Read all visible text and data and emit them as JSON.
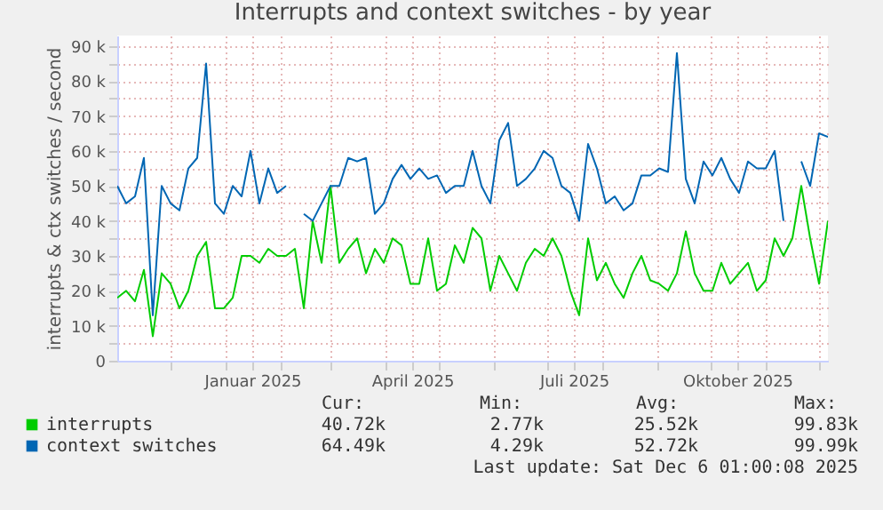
{
  "chart_data": {
    "type": "line",
    "title": "Interrupts and context switches - by year",
    "ylabel": "interrupts & ctx switches / second",
    "x": [
      "2024-11-01",
      "2024-11-06",
      "2024-11-11",
      "2024-11-16",
      "2024-11-21",
      "2024-11-26",
      "2024-12-01",
      "2024-12-06",
      "2024-12-11",
      "2024-12-16",
      "2024-12-21",
      "2024-12-26",
      "2024-12-31",
      "2025-01-05",
      "2025-01-10",
      "2025-01-15",
      "2025-01-20",
      "2025-01-25",
      "2025-01-30",
      "2025-02-04",
      "2025-02-09",
      "2025-02-14",
      "2025-02-19",
      "2025-02-24",
      "2025-03-01",
      "2025-03-06",
      "2025-03-11",
      "2025-03-16",
      "2025-03-21",
      "2025-03-26",
      "2025-03-31",
      "2025-04-05",
      "2025-04-10",
      "2025-04-15",
      "2025-04-20",
      "2025-04-25",
      "2025-04-30",
      "2025-05-05",
      "2025-05-10",
      "2025-05-15",
      "2025-05-20",
      "2025-05-25",
      "2025-05-30",
      "2025-06-04",
      "2025-06-09",
      "2025-06-14",
      "2025-06-19",
      "2025-06-24",
      "2025-06-29",
      "2025-07-04",
      "2025-07-09",
      "2025-07-14",
      "2025-07-19",
      "2025-07-24",
      "2025-07-29",
      "2025-08-03",
      "2025-08-08",
      "2025-08-13",
      "2025-08-18",
      "2025-08-23",
      "2025-08-28",
      "2025-09-02",
      "2025-09-07",
      "2025-09-12",
      "2025-09-17",
      "2025-09-22",
      "2025-09-27",
      "2025-10-02",
      "2025-10-07",
      "2025-10-12",
      "2025-10-17",
      "2025-10-22",
      "2025-10-27",
      "2025-11-01",
      "2025-11-06",
      "2025-11-11",
      "2025-11-16",
      "2025-11-21",
      "2025-11-26",
      "2025-12-01",
      "2025-12-06"
    ],
    "series": [
      {
        "name": "interrupts",
        "color": "#00cc00",
        "values": [
          18000,
          20000,
          17000,
          26000,
          7000,
          25000,
          22000,
          15000,
          20000,
          30000,
          34000,
          15000,
          15000,
          18000,
          30000,
          30000,
          28000,
          32000,
          30000,
          30000,
          32000,
          15000,
          40000,
          28000,
          50000,
          28000,
          32000,
          35000,
          25000,
          32000,
          28000,
          35000,
          33000,
          22000,
          22000,
          35000,
          20000,
          22000,
          33000,
          28000,
          38000,
          35000,
          20000,
          30000,
          25000,
          20000,
          28000,
          32000,
          30000,
          35000,
          30000,
          20000,
          13000,
          35000,
          23000,
          28000,
          22000,
          18000,
          25000,
          30000,
          23000,
          22000,
          20000,
          25000,
          37000,
          25000,
          20000,
          20000,
          28000,
          22000,
          25000,
          28000,
          20000,
          23000,
          35000,
          30000,
          35000,
          50000,
          35000,
          22000,
          40000
        ]
      },
      {
        "name": "context switches",
        "color": "#0066b3",
        "values": [
          50000,
          45000,
          47000,
          58000,
          13000,
          50000,
          45000,
          43000,
          55000,
          58000,
          85000,
          45000,
          42000,
          50000,
          47000,
          60000,
          45000,
          55000,
          48000,
          50000,
          null,
          42000,
          40000,
          45000,
          50000,
          50000,
          58000,
          57000,
          58000,
          42000,
          45000,
          52000,
          56000,
          52000,
          55000,
          52000,
          53000,
          48000,
          50000,
          50000,
          60000,
          50000,
          45000,
          63000,
          68000,
          50000,
          52000,
          55000,
          60000,
          58000,
          50000,
          48000,
          40000,
          62000,
          55000,
          45000,
          47000,
          43000,
          45000,
          53000,
          53000,
          55000,
          54000,
          88000,
          52000,
          45000,
          57000,
          53000,
          58000,
          52000,
          48000,
          57000,
          55000,
          55000,
          60000,
          40000,
          null,
          57000,
          50000,
          65000,
          64000
        ]
      }
    ],
    "xlim": [
      "2024-11-01",
      "2025-12-06"
    ],
    "xticks": [
      {
        "value": "2024-12-01",
        "label": null
      },
      {
        "value": "2025-01-01",
        "label": null
      },
      {
        "value": "2025-01-16",
        "label": "Januar 2025"
      },
      {
        "value": "2025-02-01",
        "label": null
      },
      {
        "value": "2025-03-01",
        "label": null
      },
      {
        "value": "2025-04-01",
        "label": null
      },
      {
        "value": "2025-04-16",
        "label": "April 2025"
      },
      {
        "value": "2025-05-01",
        "label": null
      },
      {
        "value": "2025-06-01",
        "label": null
      },
      {
        "value": "2025-07-01",
        "label": null
      },
      {
        "value": "2025-07-16",
        "label": "Juli 2025"
      },
      {
        "value": "2025-08-01",
        "label": null
      },
      {
        "value": "2025-09-01",
        "label": null
      },
      {
        "value": "2025-10-01",
        "label": null
      },
      {
        "value": "2025-10-16",
        "label": "Oktober 2025"
      },
      {
        "value": "2025-11-01",
        "label": null
      },
      {
        "value": "2025-12-01",
        "label": null
      }
    ],
    "ylim": [
      0,
      93000
    ],
    "yticks": [
      {
        "value": 0,
        "label": "0"
      },
      {
        "value": 5000,
        "label": null
      },
      {
        "value": 10000,
        "label": "10 k"
      },
      {
        "value": 15000,
        "label": null
      },
      {
        "value": 20000,
        "label": "20 k"
      },
      {
        "value": 25000,
        "label": null
      },
      {
        "value": 30000,
        "label": "30 k"
      },
      {
        "value": 35000,
        "label": null
      },
      {
        "value": 40000,
        "label": "40 k"
      },
      {
        "value": 45000,
        "label": null
      },
      {
        "value": 50000,
        "label": "50 k"
      },
      {
        "value": 55000,
        "label": null
      },
      {
        "value": 60000,
        "label": "60 k"
      },
      {
        "value": 65000,
        "label": null
      },
      {
        "value": 70000,
        "label": "70 k"
      },
      {
        "value": 75000,
        "label": null
      },
      {
        "value": 80000,
        "label": "80 k"
      },
      {
        "value": 85000,
        "label": null
      },
      {
        "value": 90000,
        "label": "90 k"
      }
    ],
    "grid": true,
    "legend": "bottom",
    "marker": "none",
    "line_style": "solid",
    "annotations": [
      "Cur:",
      "Min:",
      "Avg:",
      "Max:",
      "40.72k",
      "2.77k",
      "25.52k",
      "99.83k",
      "64.49k",
      "4.29k",
      "52.72k",
      "99.99k",
      "Last update: Sat Dec  6 01:00:08 2025"
    ]
  }
}
